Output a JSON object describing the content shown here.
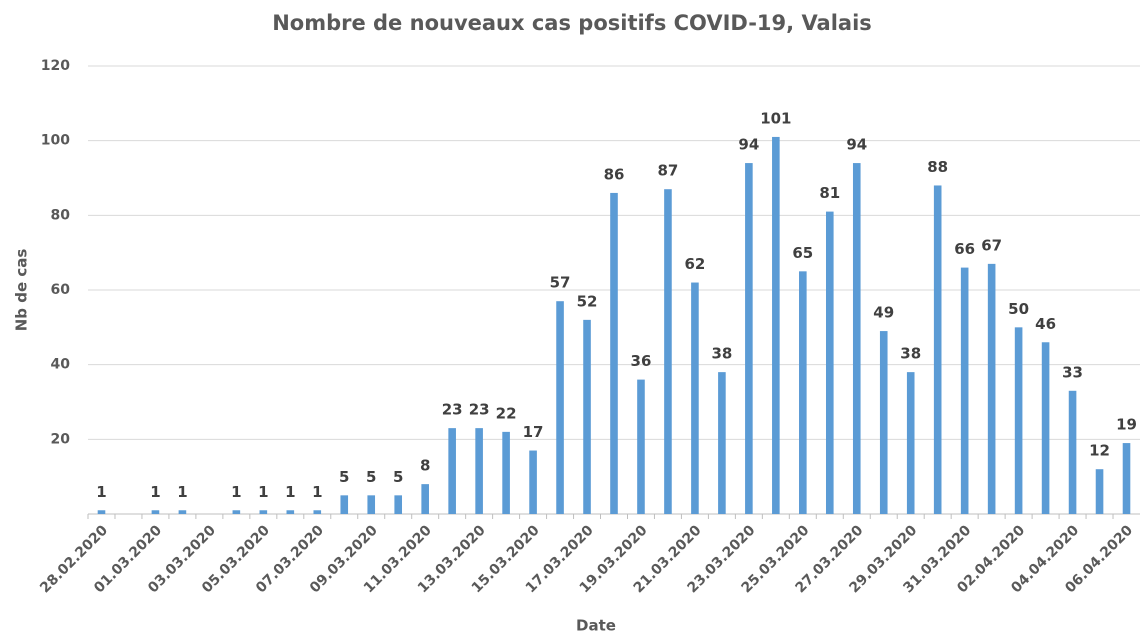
{
  "chart_data": {
    "type": "bar",
    "title": "Nombre de nouveaux cas positifs COVID-19, Valais",
    "x_label": "Date",
    "y_label": "Nb de cas",
    "categories": [
      "28.02.2020",
      null,
      "01.03.2020",
      null,
      "03.03.2020",
      null,
      "05.03.2020",
      null,
      "07.03.2020",
      null,
      "09.03.2020",
      null,
      "11.03.2020",
      null,
      "13.03.2020",
      null,
      "15.03.2020",
      null,
      "17.03.2020",
      null,
      "19.03.2020",
      null,
      "21.03.2020",
      null,
      "23.03.2020",
      null,
      "25.03.2020",
      null,
      "27.03.2020",
      null,
      "29.03.2020",
      null,
      "31.03.2020",
      null,
      "02.04.2020",
      null,
      "04.04.2020",
      null,
      "06.04.2020"
    ],
    "values": [
      1,
      null,
      1,
      1,
      null,
      1,
      1,
      1,
      1,
      5,
      5,
      5,
      8,
      23,
      23,
      22,
      17,
      57,
      52,
      86,
      36,
      87,
      62,
      38,
      94,
      101,
      65,
      81,
      94,
      49,
      38,
      88,
      66,
      67,
      50,
      46,
      33,
      12,
      19
    ],
    "color": "#5b9bd5",
    "ylim": [
      0,
      120
    ],
    "yticks": [
      20,
      40,
      60,
      80,
      100,
      120
    ],
    "grid": true
  }
}
